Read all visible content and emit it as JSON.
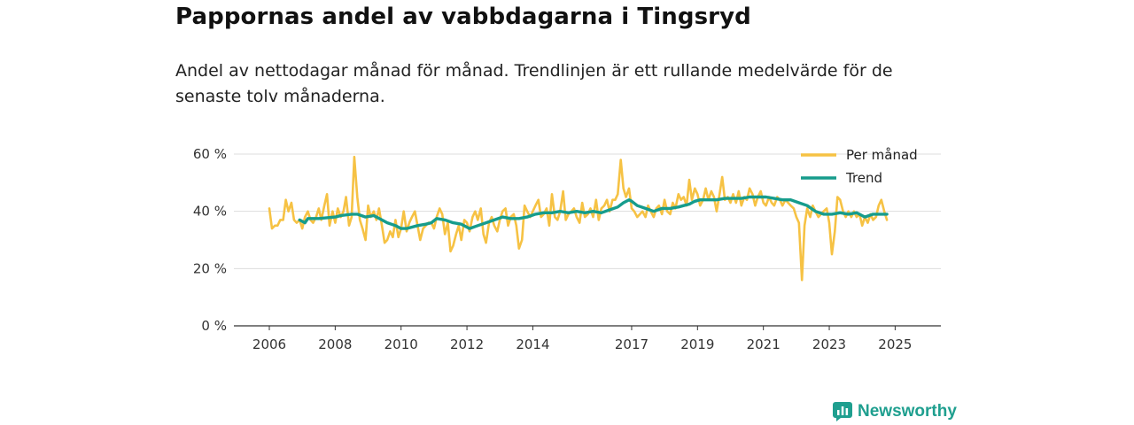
{
  "title": "Pappornas andel av vabbdagarna i Tingsryd",
  "subtitle": "Andel av nettodagar månad för månad. Trendlinjen är ett rullande medelvärde för de senaste tolv månaderna.",
  "brand": {
    "name": "Newsworthy",
    "icon": "newsworthy-logo-icon",
    "color": "#1f9f8f"
  },
  "colors": {
    "monthly": "#f6c244",
    "trend": "#169c8c",
    "grid": "#dddddd",
    "axis": "#333333"
  },
  "chart_data": {
    "type": "line",
    "x_range": [
      2006.0,
      2025.42
    ],
    "y_range": [
      0,
      60
    ],
    "y_ticks": [
      0,
      20,
      40,
      60
    ],
    "y_tick_labels": [
      "0 %",
      "20 %",
      "40 %",
      "60 %"
    ],
    "x_ticks": [
      2006,
      2008,
      2010,
      2012,
      2014,
      2017,
      2019,
      2021,
      2023,
      2025
    ],
    "x_tick_labels": [
      "2006",
      "2008",
      "2010",
      "2012",
      "2014",
      "2017",
      "2019",
      "2021",
      "2023",
      "2025"
    ],
    "legend": {
      "position": "top-right",
      "items": [
        "Per månad",
        "Trend"
      ]
    },
    "grid": true,
    "unit": "%",
    "series": [
      {
        "name": "Per månad",
        "points": [
          [
            2006.0,
            41
          ],
          [
            2006.08,
            34
          ],
          [
            2006.17,
            35
          ],
          [
            2006.25,
            35
          ],
          [
            2006.33,
            37
          ],
          [
            2006.42,
            37
          ],
          [
            2006.5,
            44
          ],
          [
            2006.58,
            40
          ],
          [
            2006.67,
            43
          ],
          [
            2006.75,
            37
          ],
          [
            2006.83,
            36
          ],
          [
            2006.92,
            37
          ],
          [
            2007.0,
            34
          ],
          [
            2007.08,
            38
          ],
          [
            2007.17,
            40
          ],
          [
            2007.25,
            37
          ],
          [
            2007.33,
            36
          ],
          [
            2007.42,
            38
          ],
          [
            2007.5,
            41
          ],
          [
            2007.58,
            37
          ],
          [
            2007.67,
            42
          ],
          [
            2007.75,
            46
          ],
          [
            2007.83,
            35
          ],
          [
            2007.92,
            40
          ],
          [
            2008.0,
            36
          ],
          [
            2008.08,
            41
          ],
          [
            2008.17,
            38
          ],
          [
            2008.25,
            40
          ],
          [
            2008.33,
            45
          ],
          [
            2008.42,
            35
          ],
          [
            2008.5,
            38
          ],
          [
            2008.58,
            59
          ],
          [
            2008.67,
            45
          ],
          [
            2008.75,
            37
          ],
          [
            2008.83,
            34
          ],
          [
            2008.92,
            30
          ],
          [
            2009.0,
            42
          ],
          [
            2009.08,
            38
          ],
          [
            2009.17,
            40
          ],
          [
            2009.25,
            37
          ],
          [
            2009.33,
            41
          ],
          [
            2009.42,
            35
          ],
          [
            2009.5,
            29
          ],
          [
            2009.58,
            30
          ],
          [
            2009.67,
            33
          ],
          [
            2009.75,
            31
          ],
          [
            2009.83,
            37
          ],
          [
            2009.92,
            31
          ],
          [
            2010.0,
            34
          ],
          [
            2010.08,
            40
          ],
          [
            2010.17,
            33
          ],
          [
            2010.25,
            36
          ],
          [
            2010.33,
            38
          ],
          [
            2010.42,
            40
          ],
          [
            2010.5,
            35
          ],
          [
            2010.58,
            30
          ],
          [
            2010.67,
            34
          ],
          [
            2010.75,
            35
          ],
          [
            2010.83,
            36
          ],
          [
            2010.92,
            36
          ],
          [
            2011.0,
            34
          ],
          [
            2011.08,
            38
          ],
          [
            2011.17,
            41
          ],
          [
            2011.25,
            39
          ],
          [
            2011.33,
            32
          ],
          [
            2011.42,
            36
          ],
          [
            2011.5,
            26
          ],
          [
            2011.58,
            28
          ],
          [
            2011.67,
            32
          ],
          [
            2011.75,
            35
          ],
          [
            2011.83,
            30
          ],
          [
            2011.92,
            37
          ],
          [
            2012.0,
            36
          ],
          [
            2012.08,
            33
          ],
          [
            2012.17,
            38
          ],
          [
            2012.25,
            40
          ],
          [
            2012.33,
            37
          ],
          [
            2012.42,
            41
          ],
          [
            2012.5,
            32
          ],
          [
            2012.58,
            29
          ],
          [
            2012.67,
            36
          ],
          [
            2012.75,
            38
          ],
          [
            2012.83,
            35
          ],
          [
            2012.92,
            33
          ],
          [
            2013.0,
            37
          ],
          [
            2013.08,
            40
          ],
          [
            2013.17,
            41
          ],
          [
            2013.25,
            35
          ],
          [
            2013.33,
            38
          ],
          [
            2013.42,
            39
          ],
          [
            2013.5,
            35
          ],
          [
            2013.58,
            27
          ],
          [
            2013.67,
            30
          ],
          [
            2013.75,
            42
          ],
          [
            2013.83,
            40
          ],
          [
            2013.92,
            38
          ],
          [
            2014.0,
            40
          ],
          [
            2014.08,
            42
          ],
          [
            2014.17,
            44
          ],
          [
            2014.25,
            38
          ],
          [
            2014.33,
            39
          ],
          [
            2014.42,
            41
          ],
          [
            2014.5,
            35
          ],
          [
            2014.58,
            46
          ],
          [
            2014.67,
            38
          ],
          [
            2014.75,
            37
          ],
          [
            2014.83,
            40
          ],
          [
            2014.92,
            47
          ],
          [
            2015.0,
            37
          ],
          [
            2015.08,
            39
          ],
          [
            2015.17,
            40
          ],
          [
            2015.25,
            41
          ],
          [
            2015.33,
            38
          ],
          [
            2015.42,
            36
          ],
          [
            2015.5,
            43
          ],
          [
            2015.58,
            38
          ],
          [
            2015.67,
            39
          ],
          [
            2015.75,
            41
          ],
          [
            2015.83,
            38
          ],
          [
            2015.92,
            44
          ],
          [
            2016.0,
            37
          ],
          [
            2016.08,
            41
          ],
          [
            2016.17,
            42
          ],
          [
            2016.25,
            44
          ],
          [
            2016.33,
            40
          ],
          [
            2016.42,
            44
          ],
          [
            2016.5,
            44
          ],
          [
            2016.58,
            46
          ],
          [
            2016.67,
            58
          ],
          [
            2016.75,
            48
          ],
          [
            2016.83,
            45
          ],
          [
            2016.92,
            48
          ],
          [
            2017.0,
            41
          ],
          [
            2017.08,
            40
          ],
          [
            2017.17,
            38
          ],
          [
            2017.25,
            39
          ],
          [
            2017.33,
            40
          ],
          [
            2017.42,
            38
          ],
          [
            2017.5,
            42
          ],
          [
            2017.58,
            40
          ],
          [
            2017.67,
            38
          ],
          [
            2017.75,
            41
          ],
          [
            2017.83,
            42
          ],
          [
            2017.92,
            39
          ],
          [
            2018.0,
            44
          ],
          [
            2018.08,
            40
          ],
          [
            2018.17,
            39
          ],
          [
            2018.25,
            43
          ],
          [
            2018.33,
            41
          ],
          [
            2018.42,
            46
          ],
          [
            2018.5,
            44
          ],
          [
            2018.58,
            45
          ],
          [
            2018.67,
            42
          ],
          [
            2018.75,
            51
          ],
          [
            2018.83,
            44
          ],
          [
            2018.92,
            48
          ],
          [
            2019.0,
            46
          ],
          [
            2019.08,
            42
          ],
          [
            2019.17,
            44
          ],
          [
            2019.25,
            48
          ],
          [
            2019.33,
            44
          ],
          [
            2019.42,
            47
          ],
          [
            2019.5,
            45
          ],
          [
            2019.58,
            40
          ],
          [
            2019.67,
            46
          ],
          [
            2019.75,
            52
          ],
          [
            2019.83,
            44
          ],
          [
            2019.92,
            45
          ],
          [
            2020.0,
            43
          ],
          [
            2020.08,
            46
          ],
          [
            2020.17,
            43
          ],
          [
            2020.25,
            47
          ],
          [
            2020.33,
            42
          ],
          [
            2020.42,
            45
          ],
          [
            2020.5,
            44
          ],
          [
            2020.58,
            48
          ],
          [
            2020.67,
            46
          ],
          [
            2020.75,
            42
          ],
          [
            2020.83,
            45
          ],
          [
            2020.92,
            47
          ],
          [
            2021.0,
            43
          ],
          [
            2021.08,
            42
          ],
          [
            2021.17,
            45
          ],
          [
            2021.25,
            43
          ],
          [
            2021.33,
            42
          ],
          [
            2021.42,
            45
          ],
          [
            2021.5,
            44
          ],
          [
            2021.58,
            42
          ],
          [
            2021.67,
            44
          ],
          [
            2021.75,
            43
          ],
          [
            2021.83,
            42
          ],
          [
            2021.92,
            41
          ],
          [
            2022.0,
            38
          ],
          [
            2022.08,
            36
          ],
          [
            2022.17,
            16
          ],
          [
            2022.25,
            35
          ],
          [
            2022.33,
            41
          ],
          [
            2022.42,
            38
          ],
          [
            2022.5,
            42
          ],
          [
            2022.58,
            40
          ],
          [
            2022.67,
            38
          ],
          [
            2022.75,
            39
          ],
          [
            2022.83,
            40
          ],
          [
            2022.92,
            41
          ],
          [
            2023.0,
            36
          ],
          [
            2023.08,
            25
          ],
          [
            2023.17,
            33
          ],
          [
            2023.25,
            45
          ],
          [
            2023.33,
            44
          ],
          [
            2023.42,
            40
          ],
          [
            2023.5,
            38
          ],
          [
            2023.58,
            40
          ],
          [
            2023.67,
            38
          ],
          [
            2023.75,
            40
          ],
          [
            2023.83,
            38
          ],
          [
            2023.92,
            39
          ],
          [
            2024.0,
            35
          ],
          [
            2024.08,
            38
          ],
          [
            2024.17,
            36
          ],
          [
            2024.25,
            39
          ],
          [
            2024.33,
            37
          ],
          [
            2024.42,
            38
          ],
          [
            2024.5,
            42
          ],
          [
            2024.58,
            44
          ],
          [
            2024.67,
            40
          ],
          [
            2024.75,
            37
          ]
        ]
      },
      {
        "name": "Trend",
        "points": [
          [
            2006.92,
            37
          ],
          [
            2007.08,
            36
          ],
          [
            2007.17,
            37.5
          ],
          [
            2007.5,
            37.5
          ],
          [
            2008.0,
            38
          ],
          [
            2008.17,
            38.5
          ],
          [
            2008.5,
            39
          ],
          [
            2008.67,
            39
          ],
          [
            2008.92,
            38
          ],
          [
            2009.17,
            38.5
          ],
          [
            2009.42,
            37
          ],
          [
            2009.58,
            36
          ],
          [
            2009.83,
            35
          ],
          [
            2010.0,
            34
          ],
          [
            2010.17,
            34
          ],
          [
            2010.5,
            35
          ],
          [
            2010.75,
            35.5
          ],
          [
            2010.92,
            36
          ],
          [
            2011.08,
            37.5
          ],
          [
            2011.33,
            37
          ],
          [
            2011.58,
            36
          ],
          [
            2011.83,
            35.5
          ],
          [
            2012.08,
            34
          ],
          [
            2012.33,
            35
          ],
          [
            2012.58,
            36
          ],
          [
            2012.83,
            37
          ],
          [
            2013.08,
            38
          ],
          [
            2013.33,
            37.5
          ],
          [
            2013.58,
            37.5
          ],
          [
            2013.83,
            38
          ],
          [
            2014.08,
            39
          ],
          [
            2014.33,
            39.5
          ],
          [
            2014.58,
            39.5
          ],
          [
            2014.83,
            40
          ],
          [
            2015.08,
            39.5
          ],
          [
            2015.33,
            40
          ],
          [
            2015.58,
            39.5
          ],
          [
            2015.83,
            40
          ],
          [
            2016.08,
            39.5
          ],
          [
            2016.33,
            40.5
          ],
          [
            2016.58,
            41.5
          ],
          [
            2016.75,
            43
          ],
          [
            2016.92,
            44
          ],
          [
            2017.0,
            43.5
          ],
          [
            2017.17,
            42
          ],
          [
            2017.42,
            41
          ],
          [
            2017.67,
            40
          ],
          [
            2017.92,
            41
          ],
          [
            2018.17,
            41
          ],
          [
            2018.42,
            41.5
          ],
          [
            2018.58,
            42
          ],
          [
            2018.75,
            42.5
          ],
          [
            2018.92,
            43.5
          ],
          [
            2019.08,
            44
          ],
          [
            2019.33,
            44
          ],
          [
            2019.58,
            44
          ],
          [
            2019.83,
            44.5
          ],
          [
            2020.08,
            44.5
          ],
          [
            2020.33,
            44.5
          ],
          [
            2020.58,
            45
          ],
          [
            2020.83,
            45
          ],
          [
            2021.08,
            45
          ],
          [
            2021.33,
            44.5
          ],
          [
            2021.58,
            44
          ],
          [
            2021.83,
            44
          ],
          [
            2022.08,
            43
          ],
          [
            2022.33,
            42
          ],
          [
            2022.58,
            40
          ],
          [
            2022.83,
            39
          ],
          [
            2023.08,
            39
          ],
          [
            2023.33,
            39.5
          ],
          [
            2023.58,
            39
          ],
          [
            2023.83,
            39.5
          ],
          [
            2024.08,
            38
          ],
          [
            2024.33,
            39
          ],
          [
            2024.58,
            39
          ],
          [
            2024.75,
            39
          ]
        ]
      }
    ]
  }
}
